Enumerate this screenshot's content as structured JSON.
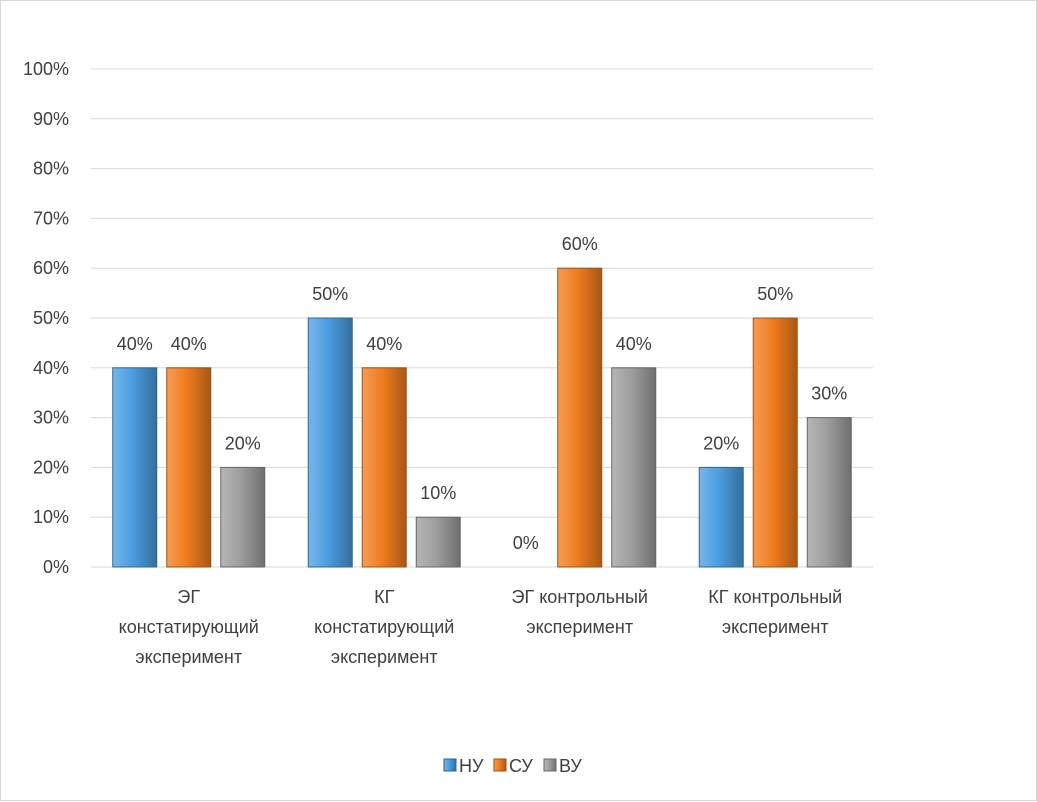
{
  "chart_data": {
    "type": "bar",
    "title": "",
    "xlabel": "",
    "ylabel": "",
    "ylim": [
      0,
      100
    ],
    "y_ticks": [
      "0%",
      "10%",
      "20%",
      "30%",
      "40%",
      "50%",
      "60%",
      "70%",
      "80%",
      "90%",
      "100%"
    ],
    "grid": true,
    "legend_position": "bottom",
    "categories": [
      [
        "ЭГ",
        "констатирующий",
        "эксперимент"
      ],
      [
        "КГ",
        "констатирующий",
        "эксперимент"
      ],
      [
        "ЭГ контрольный",
        "эксперимент"
      ],
      [
        "КГ контрольный",
        "эксперимент"
      ]
    ],
    "series": [
      {
        "name": "НУ",
        "color": "#4a9de0",
        "values": [
          40,
          50,
          0,
          20
        ],
        "labels": [
          "40%",
          "50%",
          "0%",
          "20%"
        ]
      },
      {
        "name": "СУ",
        "color": "#f07c1e",
        "values": [
          40,
          40,
          60,
          50
        ],
        "labels": [
          "40%",
          "40%",
          "60%",
          "50%"
        ]
      },
      {
        "name": "ВУ",
        "color": "#9e9e9e",
        "values": [
          20,
          10,
          40,
          30
        ],
        "labels": [
          "20%",
          "10%",
          "40%",
          "30%"
        ]
      }
    ]
  }
}
